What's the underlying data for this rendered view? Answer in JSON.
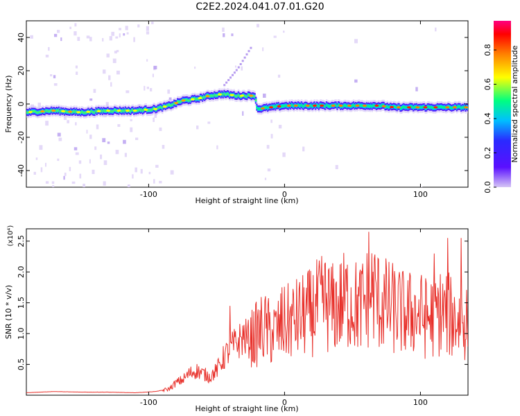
{
  "title": "C2E2.2024.041.07.01.G20",
  "chart_data": [
    {
      "type": "heatmap",
      "xlabel": "Height of straight line (km)",
      "ylabel": "Frequency (Hz)",
      "xlim": [
        -190,
        135
      ],
      "ylim": [
        -50,
        50
      ],
      "x_ticks": [
        -100,
        0,
        100
      ],
      "y_ticks": [
        -40,
        -20,
        0,
        20,
        40
      ],
      "grid": false,
      "colorbar": {
        "label": "Normalized spectral amplitude",
        "range": [
          0,
          0.97
        ],
        "ticks": [
          "0.0",
          "0.2",
          "0.4",
          "0.6",
          "0.8"
        ],
        "colormap": [
          "#d6c6f5",
          "#3a00ff",
          "#00bfff",
          "#00ff80",
          "#ffff00",
          "#ff8000",
          "#ff0000",
          "#ff0080"
        ]
      },
      "ridge": {
        "x": [
          -190,
          -170,
          -150,
          -130,
          -110,
          -95,
          -85,
          -75,
          -65,
          -55,
          -45,
          -35,
          -28,
          -22,
          -20,
          -10,
          0,
          10,
          20,
          30,
          40,
          50,
          60,
          70,
          80,
          90,
          100,
          110,
          120,
          135
        ],
        "freq": [
          -5,
          -4,
          -5,
          -4,
          -4,
          -3,
          -1,
          2,
          3,
          5,
          6,
          5,
          5,
          5,
          -3,
          -2,
          -1,
          -1,
          -1,
          -1,
          -1,
          -1,
          -1,
          -1,
          -2,
          -2,
          -2,
          -2,
          -2,
          -2
        ]
      },
      "upward_feature": {
        "x": [
          -45,
          -35,
          -25
        ],
        "freq": [
          12,
          22,
          35
        ]
      }
    },
    {
      "type": "line",
      "xlabel": "Height of straight line (km)",
      "ylabel": "SNR (10 * v/v)",
      "y_scale_label": "(x10⁴)",
      "xlim": [
        -190,
        135
      ],
      "ylim": [
        0,
        2.7
      ],
      "x_ticks": [
        -100,
        0,
        100
      ],
      "y_ticks": [
        "0.5",
        "1.0",
        "1.5",
        "2.0",
        "2.5"
      ],
      "color": "#e8302a",
      "series": [
        {
          "x": [
            -190,
            -170,
            -150,
            -130,
            -110,
            -95,
            -85,
            -80,
            -75,
            -70,
            -65,
            -60,
            -55,
            -50,
            -45,
            -40,
            -35,
            -30,
            -25,
            -20,
            -15,
            -10,
            -5,
            0,
            5,
            10,
            15,
            20,
            25,
            30,
            35,
            40,
            45,
            50,
            55,
            60,
            65,
            70,
            75,
            80,
            85,
            90,
            95,
            100,
            105,
            110,
            115,
            120,
            125,
            130,
            135
          ],
          "values": [
            0.04,
            0.06,
            0.05,
            0.05,
            0.04,
            0.06,
            0.1,
            0.2,
            0.25,
            0.35,
            0.4,
            0.35,
            0.3,
            0.4,
            0.6,
            0.75,
            0.85,
            0.95,
            0.9,
            1.0,
            1.1,
            1.0,
            1.05,
            1.15,
            1.2,
            1.25,
            1.3,
            1.35,
            1.45,
            1.5,
            1.4,
            1.45,
            1.55,
            1.5,
            1.4,
            1.55,
            1.7,
            1.5,
            1.45,
            1.4,
            1.35,
            1.3,
            1.35,
            1.3,
            1.25,
            1.3,
            1.35,
            1.3,
            1.25,
            1.2,
            1.2
          ],
          "peaks": [
            [
              -40,
              1.45
            ],
            [
              -2,
              1.75
            ],
            [
              30,
              2.15
            ],
            [
              62,
              2.65
            ],
            [
              110,
              2.3
            ],
            [
              120,
              2.55
            ],
            [
              130,
              2.55
            ]
          ]
        }
      ]
    }
  ]
}
